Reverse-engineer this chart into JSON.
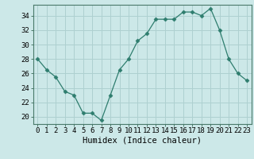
{
  "x": [
    0,
    1,
    2,
    3,
    4,
    5,
    6,
    7,
    8,
    9,
    10,
    11,
    12,
    13,
    14,
    15,
    16,
    17,
    18,
    19,
    20,
    21,
    22,
    23
  ],
  "y": [
    28,
    26.5,
    25.5,
    23.5,
    23,
    20.5,
    20.5,
    19.5,
    23,
    26.5,
    28,
    30.5,
    31.5,
    33.5,
    33.5,
    33.5,
    34.5,
    34.5,
    34,
    35,
    32,
    28,
    26,
    25
  ],
  "line_color": "#2e7d6e",
  "marker": "D",
  "marker_size": 2.5,
  "background_color": "#cce8e8",
  "grid_color": "#aed0d0",
  "xlabel": "Humidex (Indice chaleur)",
  "ylim": [
    19.0,
    35.5
  ],
  "xlim": [
    -0.5,
    23.5
  ],
  "yticks": [
    20,
    22,
    24,
    26,
    28,
    30,
    32,
    34
  ],
  "xticks": [
    0,
    1,
    2,
    3,
    4,
    5,
    6,
    7,
    8,
    9,
    10,
    11,
    12,
    13,
    14,
    15,
    16,
    17,
    18,
    19,
    20,
    21,
    22,
    23
  ],
  "xtick_labels": [
    "0",
    "1",
    "2",
    "3",
    "4",
    "5",
    "6",
    "7",
    "8",
    "9",
    "10",
    "11",
    "12",
    "13",
    "14",
    "15",
    "16",
    "17",
    "18",
    "19",
    "20",
    "21",
    "22",
    "23"
  ],
  "tick_fontsize": 6.5,
  "label_fontsize": 7.5
}
